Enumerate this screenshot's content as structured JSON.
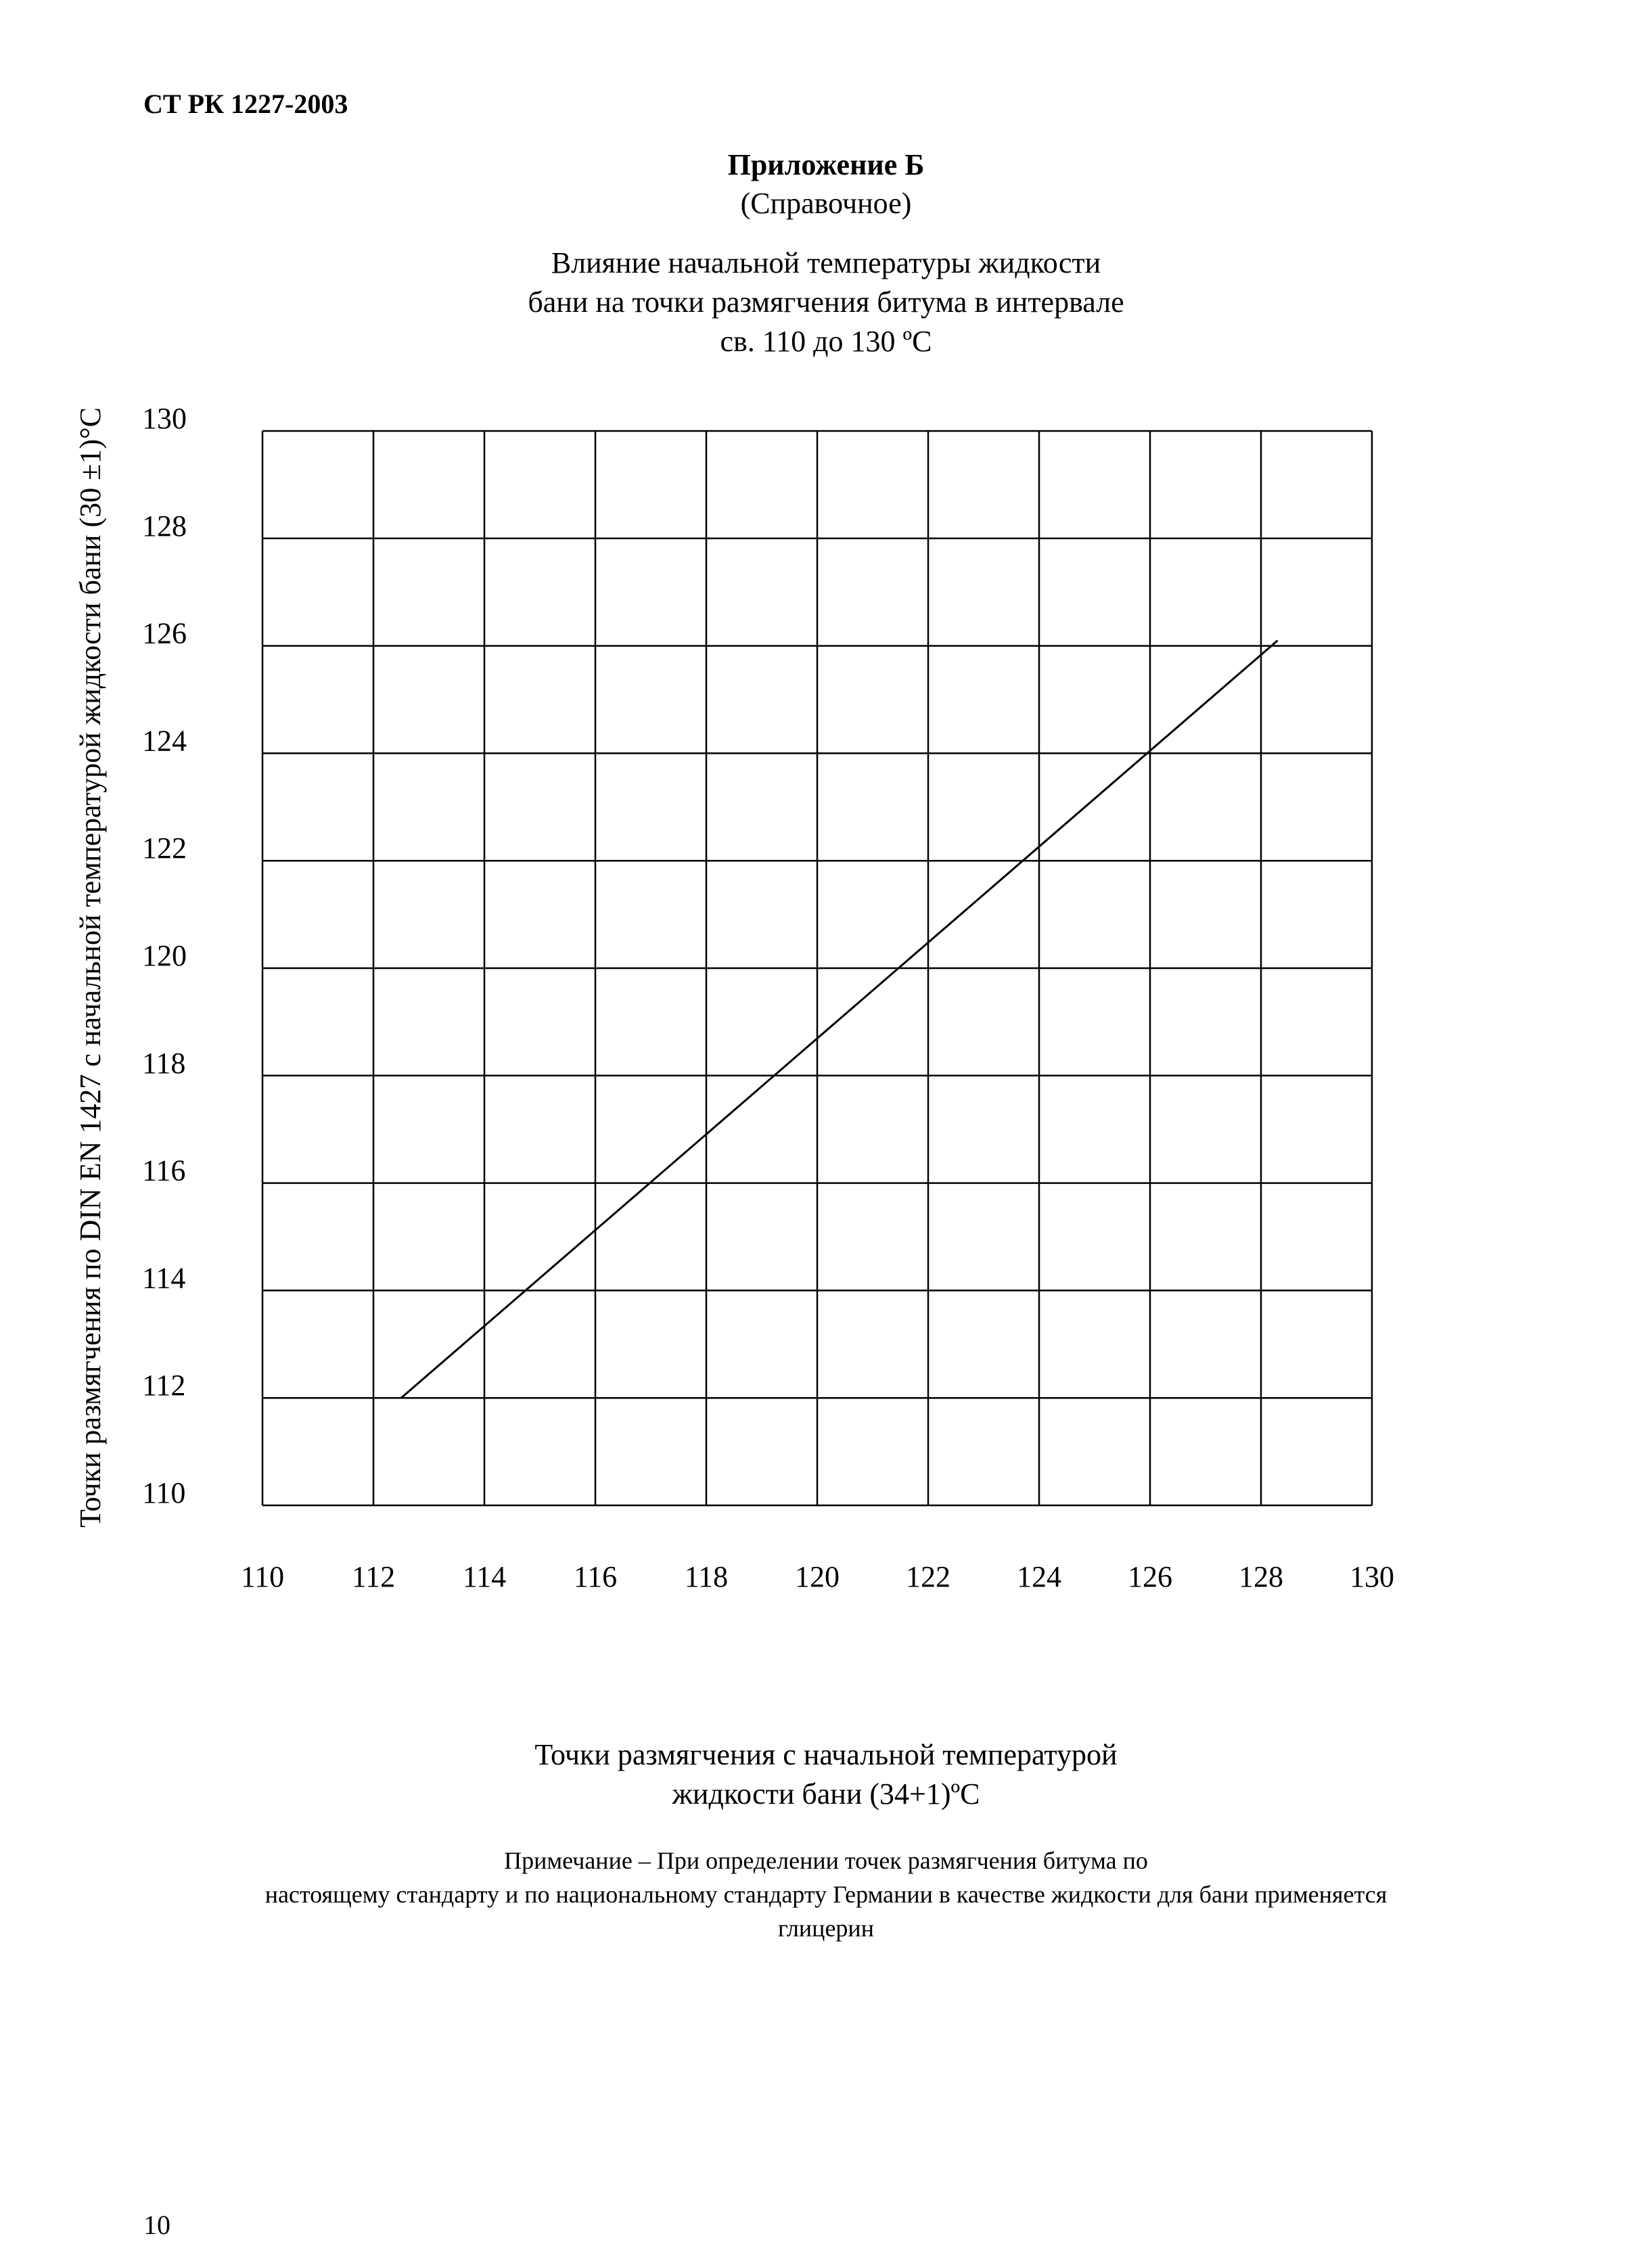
{
  "document": {
    "header": "СТ РК 1227-2003",
    "appendix_title": "Приложение Б",
    "appendix_subtitle": "(Справочное)",
    "page_number": "10",
    "note": {
      "line1": "Примечание – При определении точек размягчения битума по",
      "line2": "настоящему стандарту и по национальному стандарту Германии в качестве жидкости для бани применяется",
      "line3": "глицерин"
    }
  },
  "chart_data": {
    "type": "line",
    "title_lines": [
      "Влияние начальной температуры жидкости",
      "бани на точки размягчения битума в интервале",
      "св. 110 до 130 ºС"
    ],
    "xlabel_lines": [
      "Точки размягчения с начальной температурой",
      "жидкости бани (34+1)ºС"
    ],
    "ylabel": "Точки размягчения по DIN EN 1427 с начальной температурой жидкости бани  (30 ±1)°С",
    "xlim": [
      110,
      130
    ],
    "ylim": [
      110,
      130
    ],
    "x_ticks": [
      "110",
      "112",
      "114",
      "116",
      "118",
      "120",
      "122",
      "124",
      "126",
      "128",
      "130"
    ],
    "y_ticks": [
      "110",
      "112",
      "114",
      "116",
      "118",
      "120",
      "122",
      "124",
      "126",
      "128",
      "130"
    ],
    "grid": true,
    "series": [
      {
        "x": [
          112.5,
          128.3
        ],
        "y": [
          112,
          126.1
        ]
      }
    ]
  }
}
